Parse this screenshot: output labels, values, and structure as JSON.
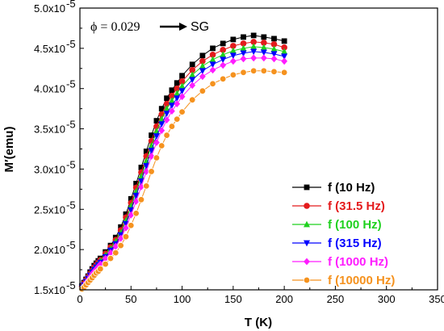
{
  "chart_data": {
    "type": "line",
    "xlabel": "T (K)",
    "ylabel": "M′(emu)",
    "xlim": [
      0,
      350
    ],
    "ylim": [
      1.5e-05,
      5e-05
    ],
    "x_ticks": [
      0,
      50,
      100,
      150,
      200,
      250,
      300,
      350
    ],
    "x_tick_labels": [
      "0",
      "50",
      "100",
      "150",
      "200",
      "250",
      "300",
      "350"
    ],
    "y_ticks": [
      1.5e-05,
      2e-05,
      2.5e-05,
      3e-05,
      3.5e-05,
      4e-05,
      4.5e-05,
      5e-05
    ],
    "y_tick_labels": [
      {
        "mantissa": "1.5x10",
        "exp": "-5"
      },
      {
        "mantissa": "2.0x10",
        "exp": "-5"
      },
      {
        "mantissa": "2.5x10",
        "exp": "-5"
      },
      {
        "mantissa": "3.0x10",
        "exp": "-5"
      },
      {
        "mantissa": "3.5x10",
        "exp": "-5"
      },
      {
        "mantissa": "4.0x10",
        "exp": "-5"
      },
      {
        "mantissa": "4.5x10",
        "exp": "-5"
      },
      {
        "mantissa": "5.0x10",
        "exp": "-5"
      }
    ],
    "annotation": {
      "phi": "ϕ = 0.029",
      "label": "SG"
    },
    "legend_position": "right",
    "x": [
      2,
      4,
      6,
      8,
      10,
      12,
      14,
      16,
      18,
      20,
      25,
      30,
      35,
      40,
      45,
      50,
      55,
      60,
      65,
      70,
      75,
      80,
      85,
      90,
      95,
      100,
      110,
      120,
      130,
      140,
      150,
      160,
      170,
      180,
      190,
      200
    ],
    "series": [
      {
        "name": "f (10 Hz)",
        "color": "#000000",
        "marker": "square",
        "values": [
          1.55e-05,
          1.59e-05,
          1.63e-05,
          1.67e-05,
          1.72e-05,
          1.76e-05,
          1.8e-05,
          1.83e-05,
          1.86e-05,
          1.89e-05,
          1.97e-05,
          2.05e-05,
          2.15e-05,
          2.28e-05,
          2.44e-05,
          2.63e-05,
          2.82e-05,
          3.02e-05,
          3.22e-05,
          3.42e-05,
          3.6e-05,
          3.75e-05,
          3.88e-05,
          3.98e-05,
          4.07e-05,
          4.16e-05,
          4.3e-05,
          4.41e-05,
          4.5e-05,
          4.56e-05,
          4.61e-05,
          4.64e-05,
          4.66e-05,
          4.64e-05,
          4.62e-05,
          4.59e-05
        ]
      },
      {
        "name": "f (31.5 Hz)",
        "color": "#e41a1c",
        "marker": "circle",
        "values": [
          1.54e-05,
          1.58e-05,
          1.62e-05,
          1.66e-05,
          1.7e-05,
          1.74e-05,
          1.78e-05,
          1.81e-05,
          1.84e-05,
          1.87e-05,
          1.95e-05,
          2.03e-05,
          2.12e-05,
          2.24e-05,
          2.4e-05,
          2.58e-05,
          2.77e-05,
          2.96e-05,
          3.16e-05,
          3.35e-05,
          3.53e-05,
          3.68e-05,
          3.81e-05,
          3.91e-05,
          4e-05,
          4.09e-05,
          4.23e-05,
          4.34e-05,
          4.42e-05,
          4.48e-05,
          4.53e-05,
          4.56e-05,
          4.58e-05,
          4.57e-05,
          4.55e-05,
          4.51e-05
        ]
      },
      {
        "name": "f (100 Hz)",
        "color": "#1fd11f",
        "marker": "triangle-up",
        "values": [
          1.54e-05,
          1.57e-05,
          1.61e-05,
          1.65e-05,
          1.69e-05,
          1.73e-05,
          1.77e-05,
          1.8e-05,
          1.83e-05,
          1.86e-05,
          1.93e-05,
          2.01e-05,
          2.1e-05,
          2.21e-05,
          2.36e-05,
          2.54e-05,
          2.72e-05,
          2.91e-05,
          3.1e-05,
          3.29e-05,
          3.47e-05,
          3.62e-05,
          3.75e-05,
          3.85e-05,
          3.94e-05,
          4.03e-05,
          4.17e-05,
          4.28e-05,
          4.36e-05,
          4.42e-05,
          4.47e-05,
          4.5e-05,
          4.52e-05,
          4.51e-05,
          4.49e-05,
          4.46e-05
        ]
      },
      {
        "name": "f (315 Hz)",
        "color": "#0000ff",
        "marker": "triangle-down",
        "values": [
          1.53e-05,
          1.56e-05,
          1.6e-05,
          1.64e-05,
          1.68e-05,
          1.72e-05,
          1.75e-05,
          1.78e-05,
          1.81e-05,
          1.84e-05,
          1.91e-05,
          1.99e-05,
          2.07e-05,
          2.18e-05,
          2.32e-05,
          2.49e-05,
          2.67e-05,
          2.85e-05,
          3.04e-05,
          3.23e-05,
          3.41e-05,
          3.56e-05,
          3.69e-05,
          3.79e-05,
          3.88e-05,
          3.97e-05,
          4.11e-05,
          4.22e-05,
          4.3e-05,
          4.36e-05,
          4.41e-05,
          4.44e-05,
          4.46e-05,
          4.45e-05,
          4.43e-05,
          4.4e-05
        ]
      },
      {
        "name": "f (1000 Hz)",
        "color": "#ff1cff",
        "marker": "diamond",
        "values": [
          1.52e-05,
          1.55e-05,
          1.59e-05,
          1.62e-05,
          1.66e-05,
          1.7e-05,
          1.73e-05,
          1.76e-05,
          1.79e-05,
          1.82e-05,
          1.89e-05,
          1.96e-05,
          2.04e-05,
          2.14e-05,
          2.27e-05,
          2.43e-05,
          2.6e-05,
          2.78e-05,
          2.97e-05,
          3.16e-05,
          3.33e-05,
          3.48e-05,
          3.61e-05,
          3.72e-05,
          3.81e-05,
          3.9e-05,
          4.04e-05,
          4.15e-05,
          4.23e-05,
          4.29e-05,
          4.34e-05,
          4.37e-05,
          4.38e-05,
          4.38e-05,
          4.37e-05,
          4.34e-05
        ]
      },
      {
        "name": "f (10000 Hz)",
        "color": "#f5921e",
        "marker": "circle-open",
        "values": [
          1.51e-05,
          1.53e-05,
          1.56e-05,
          1.59e-05,
          1.62e-05,
          1.65e-05,
          1.68e-05,
          1.71e-05,
          1.73e-05,
          1.76e-05,
          1.82e-05,
          1.89e-05,
          1.96e-05,
          2.05e-05,
          2.16e-05,
          2.3e-05,
          2.45e-05,
          2.62e-05,
          2.79e-05,
          2.97e-05,
          3.14e-05,
          3.29e-05,
          3.42e-05,
          3.53e-05,
          3.62e-05,
          3.71e-05,
          3.86e-05,
          3.97e-05,
          4.06e-05,
          4.12e-05,
          4.17e-05,
          4.2e-05,
          4.22e-05,
          4.22e-05,
          4.21e-05,
          4.2e-05
        ]
      }
    ]
  }
}
